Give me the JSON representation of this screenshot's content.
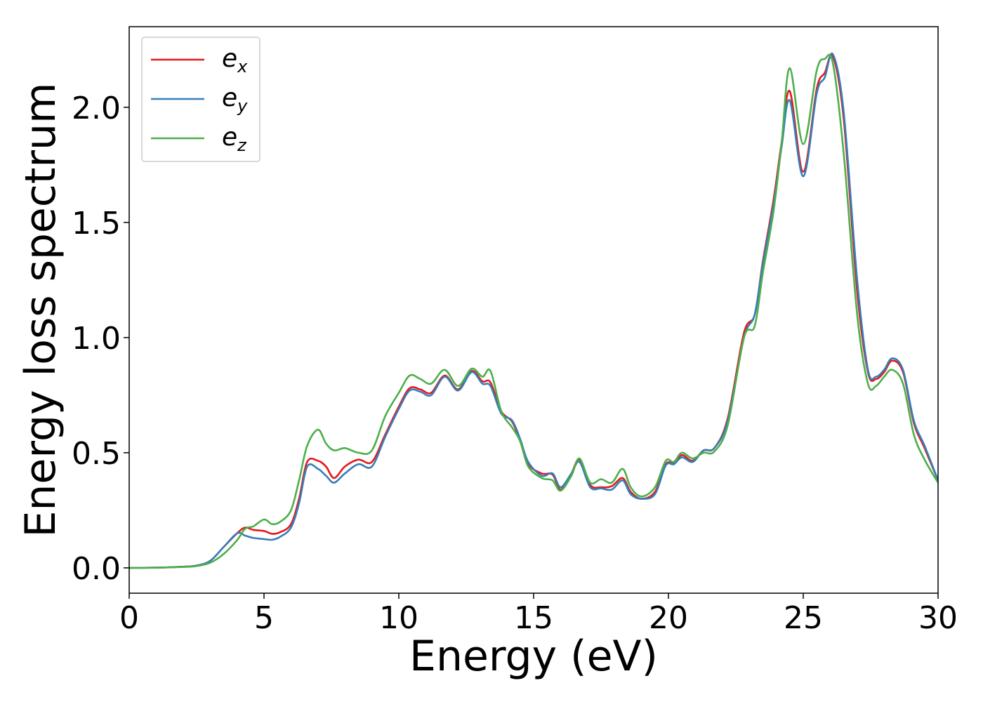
{
  "chart_data": {
    "type": "line",
    "title": "",
    "xlabel": "Energy (eV)",
    "ylabel": "Energy loss spectrum",
    "xlim": [
      0,
      30
    ],
    "ylim": [
      -0.11,
      2.35
    ],
    "xticks": [
      0,
      5,
      10,
      15,
      20,
      25,
      30
    ],
    "xtick_labels": [
      "0",
      "5",
      "10",
      "15",
      "20",
      "25",
      "30"
    ],
    "yticks": [
      0.0,
      0.5,
      1.0,
      1.5,
      2.0
    ],
    "ytick_labels": [
      "0.0",
      "0.5",
      "1.0",
      "1.5",
      "2.0"
    ],
    "grid": false,
    "legend_position": "top-left",
    "series": [
      {
        "name": "e",
        "subscript": "x",
        "color": "#e41a1c",
        "points": [
          [
            0,
            0
          ],
          [
            1,
            0.001
          ],
          [
            2,
            0.005
          ],
          [
            2.5,
            0.01
          ],
          [
            3,
            0.03
          ],
          [
            3.5,
            0.09
          ],
          [
            4,
            0.15
          ],
          [
            4.3,
            0.175
          ],
          [
            4.6,
            0.165
          ],
          [
            5,
            0.16
          ],
          [
            5.3,
            0.148
          ],
          [
            5.6,
            0.155
          ],
          [
            6,
            0.19
          ],
          [
            6.3,
            0.3
          ],
          [
            6.6,
            0.46
          ],
          [
            7,
            0.465
          ],
          [
            7.3,
            0.44
          ],
          [
            7.6,
            0.39
          ],
          [
            8,
            0.44
          ],
          [
            8.5,
            0.47
          ],
          [
            9,
            0.46
          ],
          [
            9.5,
            0.58
          ],
          [
            10,
            0.7
          ],
          [
            10.4,
            0.78
          ],
          [
            10.8,
            0.775
          ],
          [
            11.2,
            0.76
          ],
          [
            11.7,
            0.835
          ],
          [
            12.2,
            0.775
          ],
          [
            12.7,
            0.855
          ],
          [
            13.1,
            0.81
          ],
          [
            13.4,
            0.805
          ],
          [
            13.8,
            0.68
          ],
          [
            14.2,
            0.635
          ],
          [
            14.5,
            0.55
          ],
          [
            14.8,
            0.45
          ],
          [
            15.3,
            0.41
          ],
          [
            15.7,
            0.405
          ],
          [
            16,
            0.34
          ],
          [
            16.4,
            0.41
          ],
          [
            16.7,
            0.47
          ],
          [
            17.1,
            0.36
          ],
          [
            17.5,
            0.35
          ],
          [
            17.9,
            0.355
          ],
          [
            18.3,
            0.39
          ],
          [
            18.6,
            0.33
          ],
          [
            19,
            0.3
          ],
          [
            19.5,
            0.33
          ],
          [
            19.9,
            0.45
          ],
          [
            20.2,
            0.455
          ],
          [
            20.5,
            0.49
          ],
          [
            20.9,
            0.465
          ],
          [
            21.3,
            0.51
          ],
          [
            21.7,
            0.52
          ],
          [
            22.2,
            0.65
          ],
          [
            22.8,
            1.02
          ],
          [
            23.2,
            1.1
          ],
          [
            23.5,
            1.33
          ],
          [
            23.9,
            1.6
          ],
          [
            24.2,
            1.85
          ],
          [
            24.5,
            2.07
          ],
          [
            25,
            1.72
          ],
          [
            25.5,
            2.08
          ],
          [
            25.8,
            2.15
          ],
          [
            26.1,
            2.22
          ],
          [
            26.5,
            1.95
          ],
          [
            27,
            1.2
          ],
          [
            27.4,
            0.85
          ],
          [
            27.7,
            0.82
          ],
          [
            28,
            0.85
          ],
          [
            28.3,
            0.9
          ],
          [
            28.7,
            0.85
          ],
          [
            29.1,
            0.63
          ],
          [
            29.5,
            0.52
          ],
          [
            30,
            0.38
          ]
        ]
      },
      {
        "name": "e",
        "subscript": "y",
        "color": "#377eb8",
        "points": [
          [
            0,
            0
          ],
          [
            1,
            0.001
          ],
          [
            2,
            0.005
          ],
          [
            2.5,
            0.01
          ],
          [
            3,
            0.03
          ],
          [
            3.5,
            0.09
          ],
          [
            4,
            0.15
          ],
          [
            4.3,
            0.14
          ],
          [
            4.6,
            0.13
          ],
          [
            5,
            0.125
          ],
          [
            5.3,
            0.122
          ],
          [
            5.6,
            0.135
          ],
          [
            6,
            0.175
          ],
          [
            6.3,
            0.28
          ],
          [
            6.6,
            0.44
          ],
          [
            7,
            0.43
          ],
          [
            7.3,
            0.4
          ],
          [
            7.6,
            0.37
          ],
          [
            8,
            0.41
          ],
          [
            8.5,
            0.45
          ],
          [
            9,
            0.44
          ],
          [
            9.5,
            0.57
          ],
          [
            10,
            0.69
          ],
          [
            10.4,
            0.77
          ],
          [
            10.8,
            0.765
          ],
          [
            11.2,
            0.75
          ],
          [
            11.7,
            0.83
          ],
          [
            12.2,
            0.77
          ],
          [
            12.7,
            0.85
          ],
          [
            13.1,
            0.8
          ],
          [
            13.4,
            0.79
          ],
          [
            13.8,
            0.67
          ],
          [
            14.2,
            0.64
          ],
          [
            14.5,
            0.56
          ],
          [
            14.8,
            0.46
          ],
          [
            15.3,
            0.4
          ],
          [
            15.7,
            0.41
          ],
          [
            16,
            0.35
          ],
          [
            16.4,
            0.41
          ],
          [
            16.7,
            0.46
          ],
          [
            17.1,
            0.35
          ],
          [
            17.5,
            0.345
          ],
          [
            17.9,
            0.34
          ],
          [
            18.3,
            0.38
          ],
          [
            18.6,
            0.32
          ],
          [
            19,
            0.3
          ],
          [
            19.5,
            0.32
          ],
          [
            19.9,
            0.445
          ],
          [
            20.2,
            0.45
          ],
          [
            20.5,
            0.48
          ],
          [
            20.9,
            0.46
          ],
          [
            21.3,
            0.51
          ],
          [
            21.7,
            0.52
          ],
          [
            22.2,
            0.64
          ],
          [
            22.8,
            1.0
          ],
          [
            23.2,
            1.1
          ],
          [
            23.5,
            1.32
          ],
          [
            23.9,
            1.58
          ],
          [
            24.2,
            1.83
          ],
          [
            24.5,
            2.03
          ],
          [
            25,
            1.7
          ],
          [
            25.5,
            2.06
          ],
          [
            25.8,
            2.13
          ],
          [
            26.1,
            2.23
          ],
          [
            26.5,
            1.98
          ],
          [
            27,
            1.25
          ],
          [
            27.4,
            0.86
          ],
          [
            27.7,
            0.83
          ],
          [
            28,
            0.86
          ],
          [
            28.3,
            0.91
          ],
          [
            28.7,
            0.86
          ],
          [
            29.1,
            0.64
          ],
          [
            29.5,
            0.53
          ],
          [
            30,
            0.38
          ]
        ]
      },
      {
        "name": "e",
        "subscript": "z",
        "color": "#4daf4a",
        "points": [
          [
            0,
            0
          ],
          [
            1,
            0.001
          ],
          [
            2,
            0.004
          ],
          [
            2.5,
            0.008
          ],
          [
            3,
            0.022
          ],
          [
            3.5,
            0.06
          ],
          [
            4,
            0.12
          ],
          [
            4.3,
            0.17
          ],
          [
            4.6,
            0.18
          ],
          [
            5,
            0.21
          ],
          [
            5.3,
            0.19
          ],
          [
            5.6,
            0.2
          ],
          [
            6,
            0.25
          ],
          [
            6.3,
            0.38
          ],
          [
            6.6,
            0.53
          ],
          [
            7,
            0.6
          ],
          [
            7.3,
            0.54
          ],
          [
            7.6,
            0.51
          ],
          [
            8,
            0.52
          ],
          [
            8.5,
            0.5
          ],
          [
            9,
            0.51
          ],
          [
            9.5,
            0.66
          ],
          [
            10,
            0.76
          ],
          [
            10.4,
            0.835
          ],
          [
            10.8,
            0.82
          ],
          [
            11.2,
            0.8
          ],
          [
            11.7,
            0.86
          ],
          [
            12.2,
            0.79
          ],
          [
            12.7,
            0.865
          ],
          [
            13.1,
            0.83
          ],
          [
            13.4,
            0.855
          ],
          [
            13.8,
            0.68
          ],
          [
            14.2,
            0.61
          ],
          [
            14.5,
            0.55
          ],
          [
            14.8,
            0.44
          ],
          [
            15.3,
            0.39
          ],
          [
            15.7,
            0.38
          ],
          [
            16,
            0.335
          ],
          [
            16.4,
            0.4
          ],
          [
            16.7,
            0.475
          ],
          [
            17.1,
            0.37
          ],
          [
            17.5,
            0.385
          ],
          [
            17.9,
            0.37
          ],
          [
            18.3,
            0.43
          ],
          [
            18.6,
            0.35
          ],
          [
            19,
            0.31
          ],
          [
            19.5,
            0.35
          ],
          [
            19.9,
            0.465
          ],
          [
            20.2,
            0.46
          ],
          [
            20.5,
            0.5
          ],
          [
            20.9,
            0.475
          ],
          [
            21.3,
            0.5
          ],
          [
            21.7,
            0.505
          ],
          [
            22.2,
            0.62
          ],
          [
            22.8,
            1.0
          ],
          [
            23.2,
            1.05
          ],
          [
            23.5,
            1.28
          ],
          [
            23.9,
            1.55
          ],
          [
            24.2,
            1.85
          ],
          [
            24.5,
            2.17
          ],
          [
            25,
            1.84
          ],
          [
            25.5,
            2.16
          ],
          [
            25.8,
            2.21
          ],
          [
            26.1,
            2.19
          ],
          [
            26.5,
            1.8
          ],
          [
            27,
            1.1
          ],
          [
            27.4,
            0.8
          ],
          [
            27.7,
            0.79
          ],
          [
            28,
            0.83
          ],
          [
            28.3,
            0.86
          ],
          [
            28.7,
            0.8
          ],
          [
            29.1,
            0.58
          ],
          [
            29.5,
            0.47
          ],
          [
            30,
            0.37
          ]
        ]
      }
    ]
  }
}
